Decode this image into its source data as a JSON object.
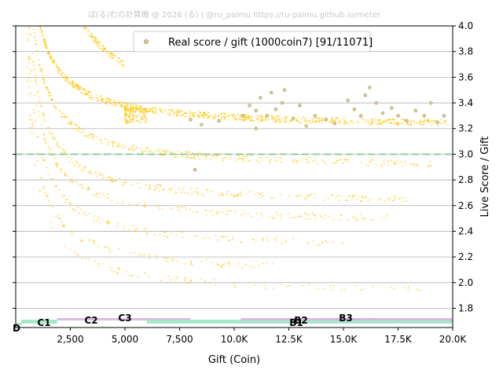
{
  "chart_data": {
    "type": "scatter",
    "watermark": "ぱ(る)むの計算機 @ 2026 (る) | @ru_palmu  https://ru-palmu.github.io/meter",
    "xlabel": "Gift (Coin)",
    "ylabel": "Live Score / Gift",
    "xlim": [
      0,
      20000
    ],
    "ylim": [
      1.65,
      4.0
    ],
    "x_ticks": [
      {
        "value": 2500,
        "label": "2,500"
      },
      {
        "value": 5000,
        "label": "5,000"
      },
      {
        "value": 7500,
        "label": "7,500"
      },
      {
        "value": 10000,
        "label": "10.0K"
      },
      {
        "value": 12500,
        "label": "12.5K"
      },
      {
        "value": 15000,
        "label": "15.0K"
      },
      {
        "value": 17500,
        "label": "17.5K"
      },
      {
        "value": 20000,
        "label": "20.0K"
      }
    ],
    "y_ticks": [
      {
        "value": 1.8,
        "label": "1.8"
      },
      {
        "value": 2.0,
        "label": "2.0"
      },
      {
        "value": 2.2,
        "label": "2.2"
      },
      {
        "value": 2.4,
        "label": "2.4"
      },
      {
        "value": 2.6,
        "label": "2.6"
      },
      {
        "value": 2.8,
        "label": "2.8"
      },
      {
        "value": 3.0,
        "label": "3.0"
      },
      {
        "value": 3.2,
        "label": "3.2"
      },
      {
        "value": 3.4,
        "label": "3.4"
      },
      {
        "value": 3.6,
        "label": "3.6"
      },
      {
        "value": 3.8,
        "label": "3.8"
      },
      {
        "value": 4.0,
        "label": "4.0"
      }
    ],
    "grid": "horizontal",
    "legend": {
      "label": "Real score / gift (1000coin7) [91/11071]",
      "position": "top-center"
    },
    "reference_line": {
      "y": 3.0,
      "color": "#8fd19e"
    },
    "colors": {
      "all_points": "#ffc400",
      "highlight_points": "#a89a6a"
    },
    "curve_families": [
      {
        "asymptote": 3.2,
        "k": 900,
        "x_min": 150,
        "x_max": 19800,
        "count": 900
      },
      {
        "asymptote": 3.2,
        "k": 2500,
        "x_min": 1200,
        "x_max": 5000,
        "count": 250
      },
      {
        "asymptote": 3.3,
        "k": 0,
        "x_min": 5000,
        "x_max": 6000,
        "count": 150
      },
      {
        "asymptote": 2.88,
        "k": 900,
        "x_min": 200,
        "x_max": 19000,
        "count": 350
      },
      {
        "asymptote": 2.6,
        "k": 900,
        "x_min": 300,
        "x_max": 18000,
        "count": 250
      },
      {
        "asymptote": 2.45,
        "k": 900,
        "x_min": 300,
        "x_max": 17000,
        "count": 180
      },
      {
        "asymptote": 2.25,
        "k": 900,
        "x_min": 300,
        "x_max": 15000,
        "count": 140
      },
      {
        "asymptote": 2.05,
        "k": 900,
        "x_min": 300,
        "x_max": 12000,
        "count": 110
      },
      {
        "asymptote": 1.9,
        "k": 900,
        "x_min": 500,
        "x_max": 19000,
        "count": 90
      }
    ],
    "highlight_points": [
      [
        8000,
        3.27
      ],
      [
        8500,
        3.23
      ],
      [
        9300,
        3.26
      ],
      [
        10400,
        3.3
      ],
      [
        10700,
        3.38
      ],
      [
        11000,
        3.34
      ],
      [
        11200,
        3.44
      ],
      [
        11500,
        3.3
      ],
      [
        11700,
        3.48
      ],
      [
        11900,
        3.35
      ],
      [
        12200,
        3.4
      ],
      [
        12300,
        3.5
      ],
      [
        12700,
        3.28
      ],
      [
        13000,
        3.38
      ],
      [
        13300,
        3.22
      ],
      [
        13700,
        3.3
      ],
      [
        14200,
        3.27
      ],
      [
        14600,
        3.24
      ],
      [
        15200,
        3.42
      ],
      [
        15500,
        3.35
      ],
      [
        15800,
        3.3
      ],
      [
        16000,
        3.46
      ],
      [
        16200,
        3.52
      ],
      [
        16500,
        3.4
      ],
      [
        16800,
        3.32
      ],
      [
        17200,
        3.36
      ],
      [
        17500,
        3.3
      ],
      [
        17900,
        3.26
      ],
      [
        18300,
        3.34
      ],
      [
        18700,
        3.3
      ],
      [
        19000,
        3.4
      ],
      [
        19300,
        3.25
      ],
      [
        19600,
        3.3
      ],
      [
        8200,
        2.88
      ],
      [
        11000,
        3.2
      ]
    ],
    "bands": [
      {
        "label": "D",
        "x0": 0,
        "x1": 250,
        "level": 1,
        "color": "#9fe6c4"
      },
      {
        "label": "C1",
        "x0": 250,
        "x1": 1900,
        "level": 2,
        "color": "#9fe6c4"
      },
      {
        "label": "C2",
        "x0": 1900,
        "x1": 4500,
        "level": 3,
        "color": "#d9b3e0"
      },
      {
        "label": "C3",
        "x0": 4500,
        "x1": 8000,
        "level": 3,
        "color": "#d9b3e0"
      },
      {
        "label": "B1",
        "x0": 6000,
        "x1": 20000,
        "level": 2,
        "color": "#9fe6c4"
      },
      {
        "label": "B2",
        "x0": 10300,
        "x1": 16500,
        "level": 3,
        "color": "#d9b3e0"
      },
      {
        "label": "B3",
        "x0": 14000,
        "x1": 20000,
        "level": 3,
        "color": "#d9b3e0"
      }
    ]
  }
}
